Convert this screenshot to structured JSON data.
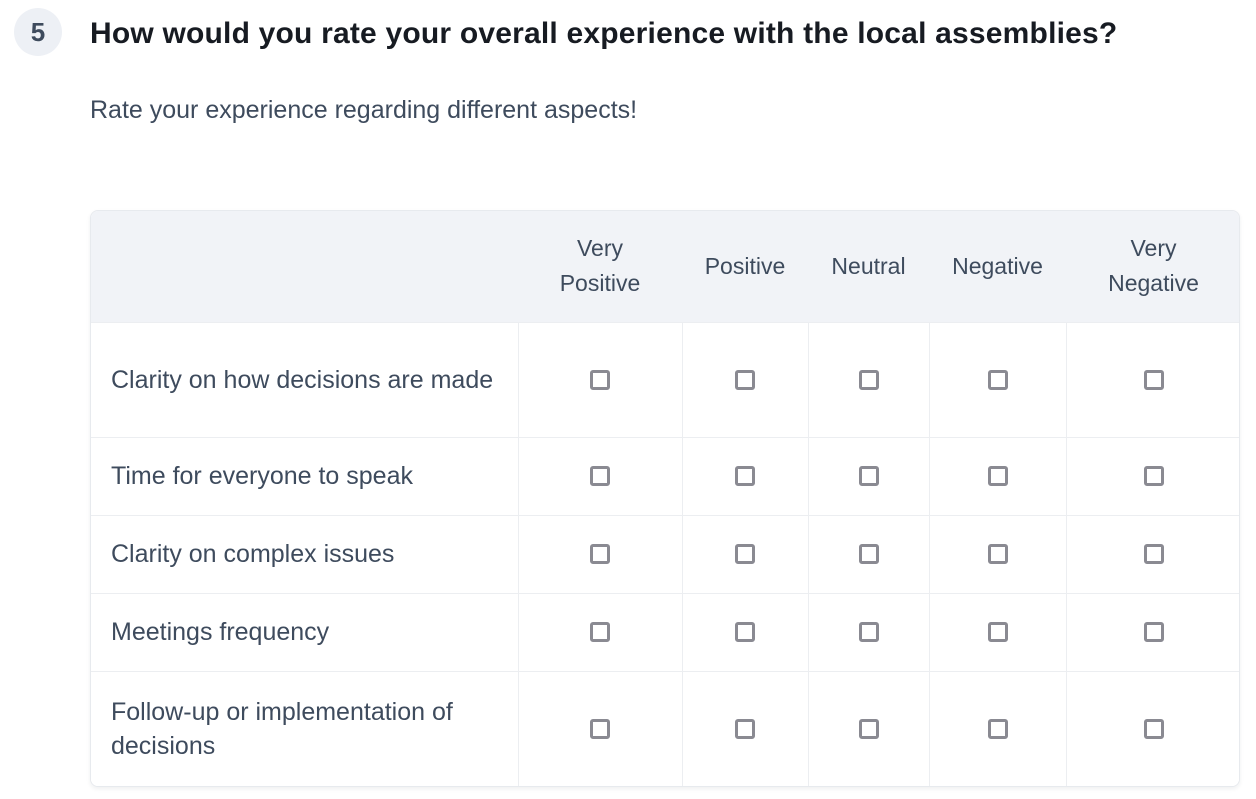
{
  "question": {
    "number": "5",
    "title": "How would you rate your overall experience with the local assemblies?",
    "description": "Rate your experience regarding different aspects!"
  },
  "matrix": {
    "columns": [
      "Very Positive",
      "Positive",
      "Neutral",
      "Negative",
      "Very Negative"
    ],
    "rows": [
      {
        "label": "Clarity on how decisions are made",
        "values": [
          false,
          false,
          false,
          false,
          false
        ]
      },
      {
        "label": "Time for everyone to speak",
        "values": [
          false,
          false,
          false,
          false,
          false
        ]
      },
      {
        "label": "Clarity on complex issues",
        "values": [
          false,
          false,
          false,
          false,
          false
        ]
      },
      {
        "label": "Meetings frequency",
        "values": [
          false,
          false,
          false,
          false,
          false
        ]
      },
      {
        "label": "Follow-up or implementation of decisions",
        "values": [
          false,
          false,
          false,
          false,
          false
        ]
      }
    ]
  },
  "colors": {
    "header_bg": "#f1f3f7",
    "badge_bg": "#edf0f5",
    "title_text": "#171b22",
    "body_text": "#3e4b5d",
    "border": "#eceef1",
    "card_border": "#e7eaee",
    "checkbox_border": "#8a8a92"
  }
}
